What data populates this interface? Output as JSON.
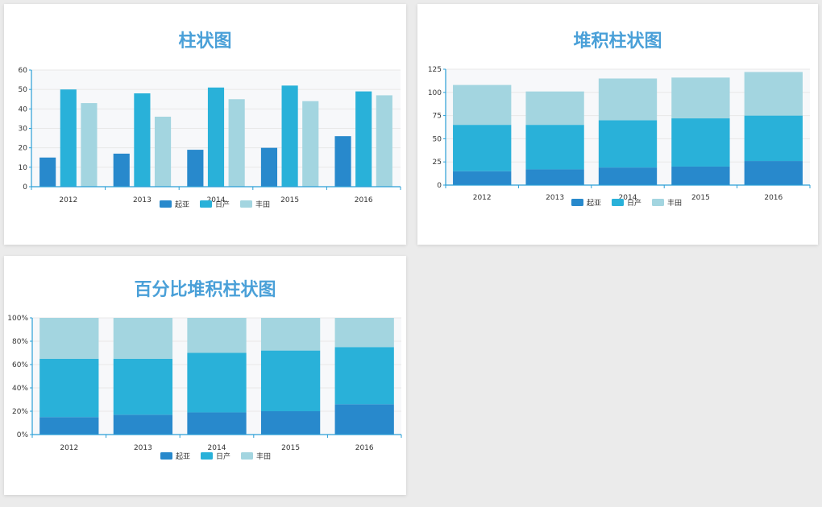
{
  "colors": {
    "background": "#ebebeb",
    "card": "#ffffff",
    "title": "#4aa0d8",
    "axis": "#2a9fd6",
    "gridline": "#e8e8e8",
    "band": "#f7f8fa",
    "series": [
      "#2889cc",
      "#29b1d9",
      "#a3d5e0"
    ]
  },
  "chart_data": [
    {
      "type": "bar",
      "title": "柱状图",
      "categories": [
        "2012",
        "2013",
        "2014",
        "2015",
        "2016"
      ],
      "series": [
        {
          "name": "起亚",
          "values": [
            15,
            17,
            19,
            20,
            26
          ]
        },
        {
          "name": "日产",
          "values": [
            50,
            48,
            51,
            52,
            49
          ]
        },
        {
          "name": "丰田",
          "values": [
            43,
            36,
            45,
            44,
            47
          ]
        }
      ],
      "ylim": [
        0,
        60
      ],
      "yticks": [
        0,
        10,
        20,
        30,
        40,
        50,
        60
      ],
      "ytick_labels": [
        "0",
        "10",
        "20",
        "30",
        "40",
        "50",
        "60"
      ],
      "grid": true,
      "legend_position": "bottom"
    },
    {
      "type": "bar",
      "stacked": true,
      "title": "堆积柱状图",
      "categories": [
        "2012",
        "2013",
        "2014",
        "2015",
        "2016"
      ],
      "series": [
        {
          "name": "起亚",
          "values": [
            15,
            17,
            19,
            20,
            26
          ]
        },
        {
          "name": "日产",
          "values": [
            50,
            48,
            51,
            52,
            49
          ]
        },
        {
          "name": "丰田",
          "values": [
            43,
            36,
            45,
            44,
            47
          ]
        }
      ],
      "ylim": [
        0,
        125
      ],
      "yticks": [
        0,
        25,
        50,
        75,
        100,
        125
      ],
      "ytick_labels": [
        "0",
        "25",
        "50",
        "75",
        "100",
        "125"
      ],
      "grid": true,
      "legend_position": "bottom"
    },
    {
      "type": "bar",
      "stacked": true,
      "percent": true,
      "title": "百分比堆积柱状图",
      "categories": [
        "2012",
        "2013",
        "2014",
        "2015",
        "2016"
      ],
      "series": [
        {
          "name": "起亚",
          "values": [
            15,
            17,
            19,
            20,
            26
          ]
        },
        {
          "name": "日产",
          "values": [
            50,
            48,
            51,
            52,
            49
          ]
        },
        {
          "name": "丰田",
          "values": [
            35,
            35,
            30,
            28,
            25
          ]
        }
      ],
      "ylim": [
        0,
        100
      ],
      "yticks": [
        0,
        20,
        40,
        60,
        80,
        100
      ],
      "ytick_labels": [
        "0%",
        "20%",
        "40%",
        "60%",
        "80%",
        "100%"
      ],
      "grid": true,
      "legend_position": "bottom"
    }
  ]
}
